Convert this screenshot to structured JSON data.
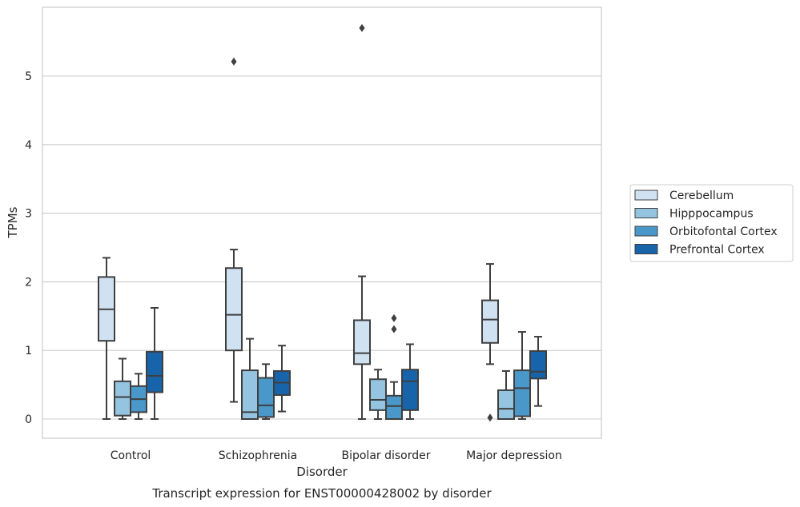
{
  "caption": "Transcript expression for ENST00000428002 by disorder",
  "chart_data": {
    "type": "box",
    "xlabel": "Disorder",
    "ylabel": "TPMs",
    "ylim": [
      -0.28,
      5.99
    ],
    "yticks": [
      0,
      1,
      2,
      3,
      4,
      5
    ],
    "grid": "horizontal",
    "legend_position": "right",
    "categories": [
      "Control",
      "Schizophrenia",
      "Bipolar disorder",
      "Major depression"
    ],
    "series": [
      {
        "name": "Cerebellum",
        "color": "#d0e1f2",
        "boxes": [
          {
            "whisker_low": 0.0,
            "q1": 1.14,
            "median": 1.6,
            "q3": 2.07,
            "whisker_high": 2.35,
            "outliers": []
          },
          {
            "whisker_low": 0.25,
            "q1": 1.0,
            "median": 1.52,
            "q3": 2.2,
            "whisker_high": 2.47,
            "outliers": [
              5.21
            ]
          },
          {
            "whisker_low": 0.0,
            "q1": 0.8,
            "median": 0.96,
            "q3": 1.44,
            "whisker_high": 2.08,
            "outliers": [
              5.7
            ]
          },
          {
            "whisker_low": 0.8,
            "q1": 1.11,
            "median": 1.45,
            "q3": 1.73,
            "whisker_high": 2.26,
            "outliers": [
              0.02
            ]
          }
        ]
      },
      {
        "name": "Hipppocampus",
        "color": "#94c4df",
        "boxes": [
          {
            "whisker_low": 0.0,
            "q1": 0.05,
            "median": 0.32,
            "q3": 0.55,
            "whisker_high": 0.88,
            "outliers": []
          },
          {
            "whisker_low": 0.0,
            "q1": 0.0,
            "median": 0.1,
            "q3": 0.71,
            "whisker_high": 1.17,
            "outliers": []
          },
          {
            "whisker_low": 0.0,
            "q1": 0.13,
            "median": 0.28,
            "q3": 0.58,
            "whisker_high": 0.72,
            "outliers": []
          },
          {
            "whisker_low": 0.0,
            "q1": 0.0,
            "median": 0.15,
            "q3": 0.42,
            "whisker_high": 0.7,
            "outliers": []
          }
        ]
      },
      {
        "name": "Orbitofontal Cortex",
        "color": "#4a98c9",
        "boxes": [
          {
            "whisker_low": 0.0,
            "q1": 0.1,
            "median": 0.29,
            "q3": 0.48,
            "whisker_high": 0.66,
            "outliers": []
          },
          {
            "whisker_low": 0.0,
            "q1": 0.03,
            "median": 0.2,
            "q3": 0.6,
            "whisker_high": 0.8,
            "outliers": []
          },
          {
            "whisker_low": 0.0,
            "q1": 0.0,
            "median": 0.19,
            "q3": 0.34,
            "whisker_high": 0.54,
            "outliers": [
              1.31,
              1.47
            ]
          },
          {
            "whisker_low": 0.0,
            "q1": 0.04,
            "median": 0.45,
            "q3": 0.71,
            "whisker_high": 1.27,
            "outliers": []
          }
        ]
      },
      {
        "name": "Prefrontal Cortex",
        "color": "#1764ab",
        "boxes": [
          {
            "whisker_low": 0.0,
            "q1": 0.39,
            "median": 0.63,
            "q3": 0.98,
            "whisker_high": 1.62,
            "outliers": []
          },
          {
            "whisker_low": 0.11,
            "q1": 0.35,
            "median": 0.53,
            "q3": 0.7,
            "whisker_high": 1.07,
            "outliers": []
          },
          {
            "whisker_low": 0.0,
            "q1": 0.13,
            "median": 0.55,
            "q3": 0.72,
            "whisker_high": 1.09,
            "outliers": []
          },
          {
            "whisker_low": 0.19,
            "q1": 0.59,
            "median": 0.69,
            "q3": 0.99,
            "whisker_high": 1.2,
            "outliers": []
          }
        ]
      }
    ]
  }
}
